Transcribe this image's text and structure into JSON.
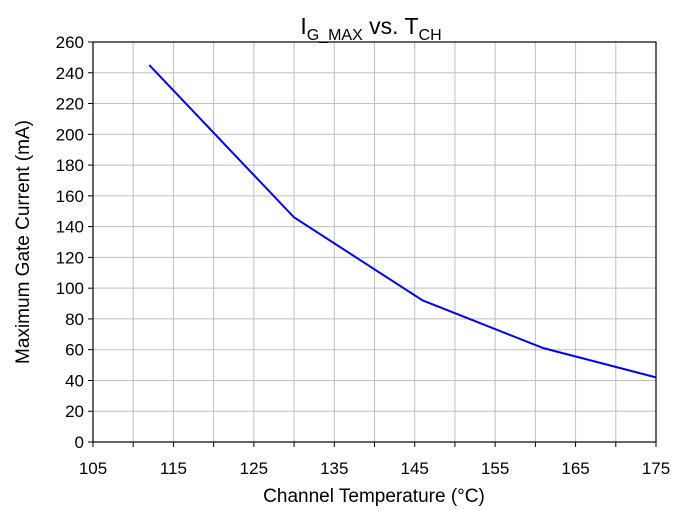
{
  "chart_data": {
    "type": "line",
    "title": {
      "parts": [
        {
          "text": "I",
          "sub": false
        },
        {
          "text": "G_MAX",
          "sub": true
        },
        {
          "text": " vs. T",
          "sub": false
        },
        {
          "text": "CH",
          "sub": true
        }
      ]
    },
    "xlabel": "Channel Temperature (°C)",
    "ylabel": "Maximum Gate Current (mA)",
    "xlim": [
      105,
      175
    ],
    "ylim": [
      0,
      260
    ],
    "xticks": [
      105,
      115,
      125,
      135,
      145,
      155,
      165,
      175
    ],
    "yticks": [
      0,
      20,
      40,
      60,
      80,
      100,
      120,
      140,
      160,
      180,
      200,
      220,
      240,
      260
    ],
    "x_minor_step": 5,
    "grid": true,
    "series": [
      {
        "color": "#0000ee",
        "x": [
          112,
          130,
          146,
          161,
          175
        ],
        "y": [
          245,
          146,
          92,
          61,
          42
        ]
      }
    ]
  }
}
